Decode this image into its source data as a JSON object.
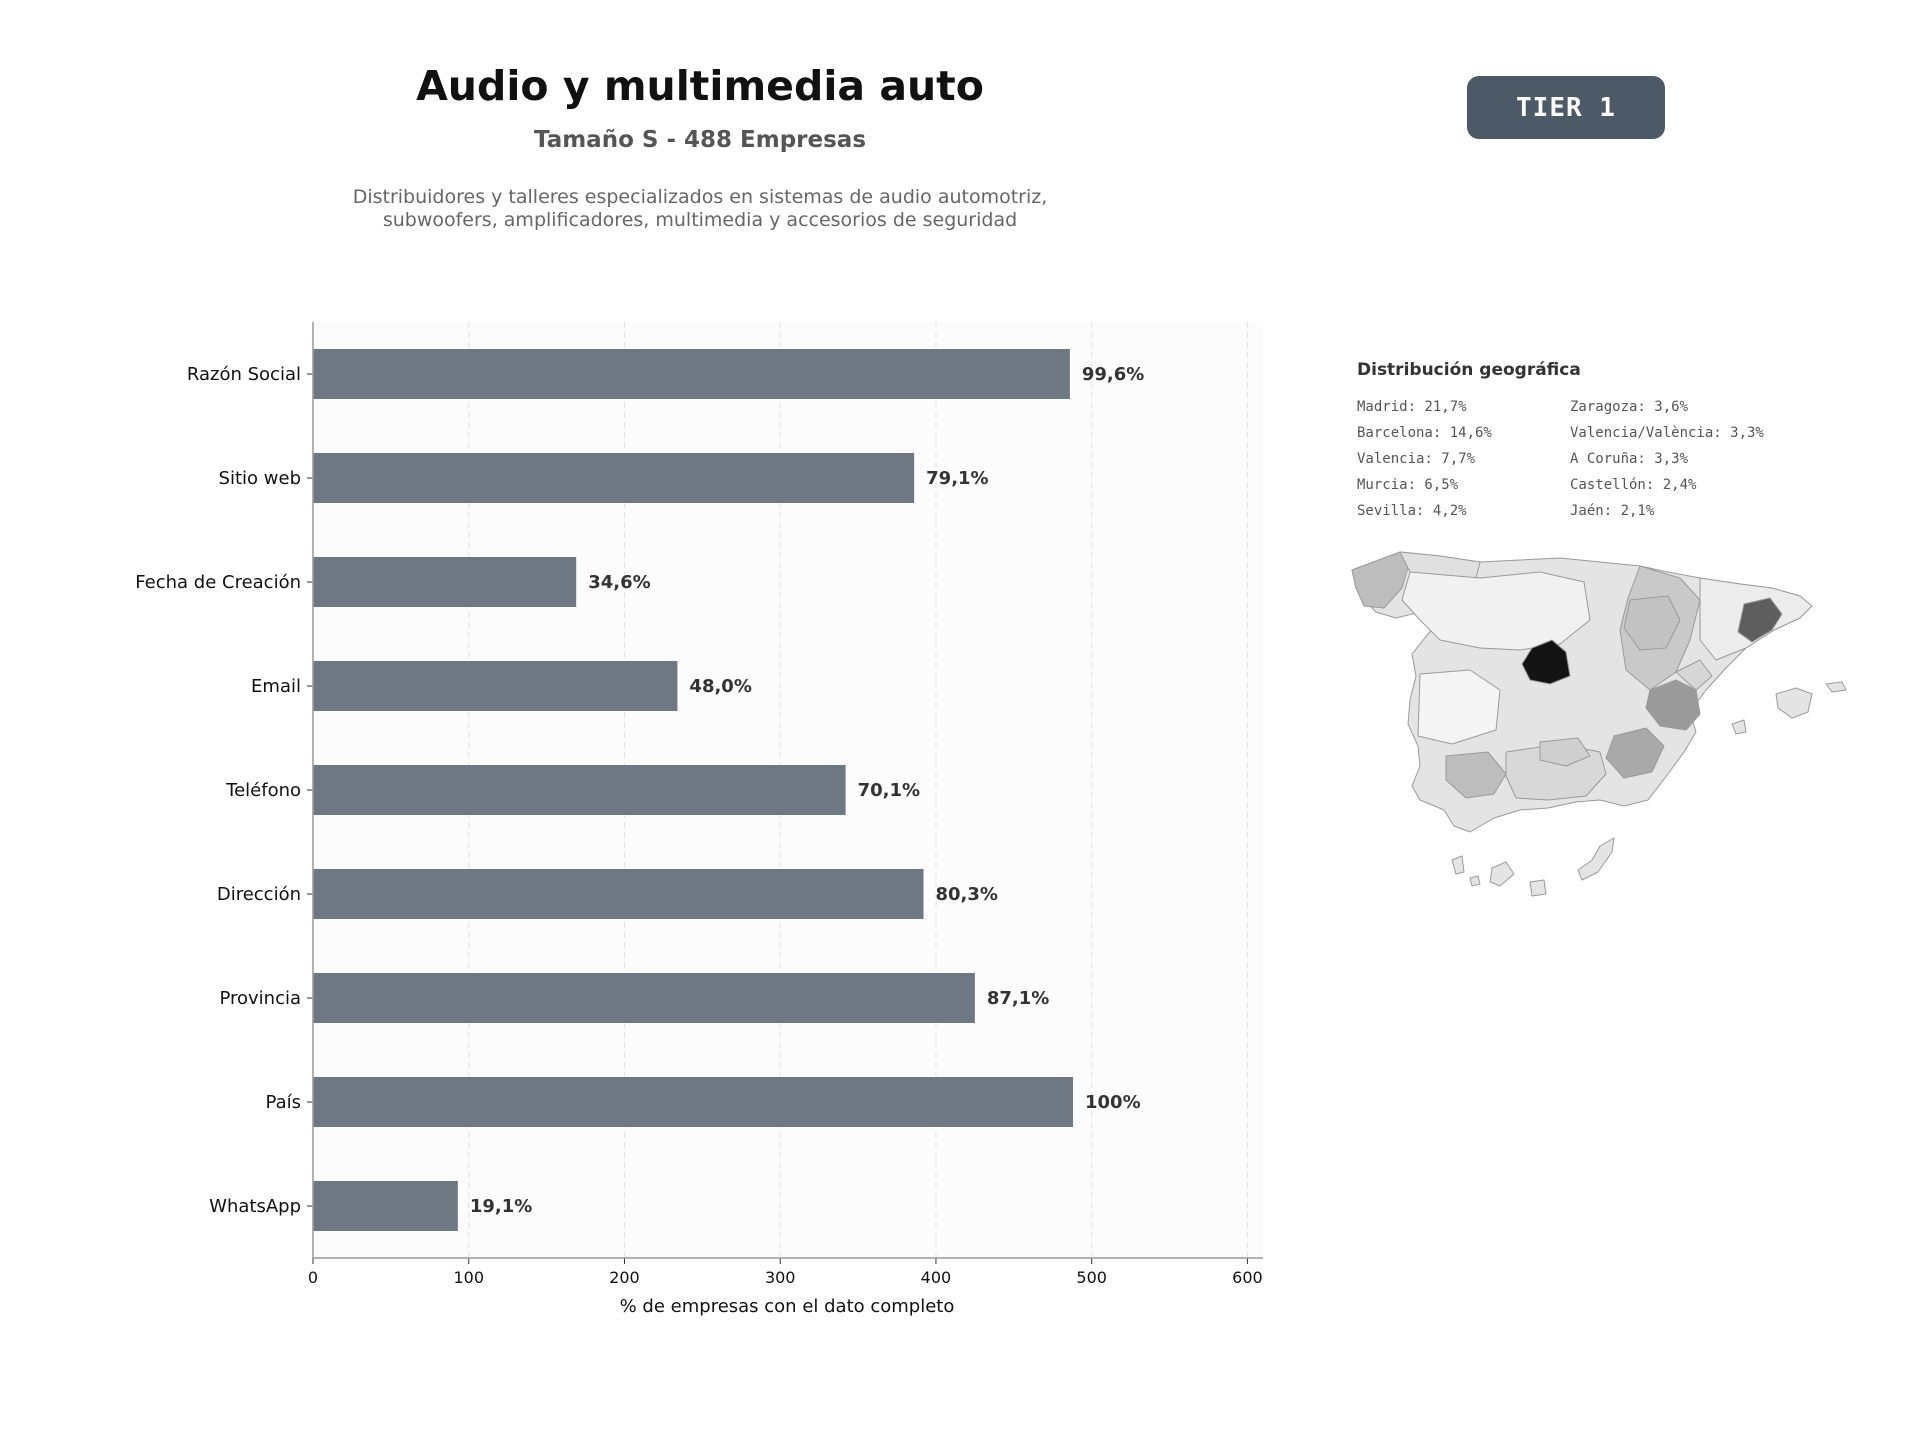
{
  "header": {
    "title": "Audio y multimedia auto",
    "subtitle": "Tamaño S - 488 Empresas",
    "description": "Distribuidores y talleres especializados en sistemas de audio automotriz, subwoofers, amplificadores, multimedia y accesorios de seguridad",
    "tier_badge": "TIER 1"
  },
  "colors": {
    "bar": "#6e7882",
    "tier_badge": "#4c5967",
    "plot_background": "#fcfcfc"
  },
  "chart_data": {
    "type": "bar",
    "orientation": "horizontal",
    "categories": [
      "Razón Social",
      "Sitio web",
      "Fecha de Creación",
      "Email",
      "Teléfono",
      "Dirección",
      "Provincia",
      "País",
      "WhatsApp"
    ],
    "values": [
      486,
      386,
      169,
      234,
      342,
      392,
      425,
      488,
      93
    ],
    "data_labels": [
      "99,6%",
      "79,1%",
      "34,6%",
      "48,0%",
      "70,1%",
      "80,3%",
      "87,1%",
      "100%",
      "19,1%"
    ],
    "xlabel": "% de empresas con el dato completo",
    "ylabel": "",
    "xlim": [
      0,
      610
    ],
    "xticks": [
      0,
      100,
      200,
      300,
      400,
      500,
      600
    ],
    "grid": "vertical dashed"
  },
  "geo": {
    "title": "Distribución geográfica",
    "entries": [
      "Madrid: 21,7%",
      "Zaragoza: 3,6%",
      "Barcelona: 14,6%",
      "Valencia/València: 3,3%",
      "Valencia: 7,7%",
      "A Coruña: 3,3%",
      "Murcia: 6,5%",
      "Castellón: 2,4%",
      "Sevilla: 4,2%",
      "Jaén: 2,1%"
    ]
  }
}
